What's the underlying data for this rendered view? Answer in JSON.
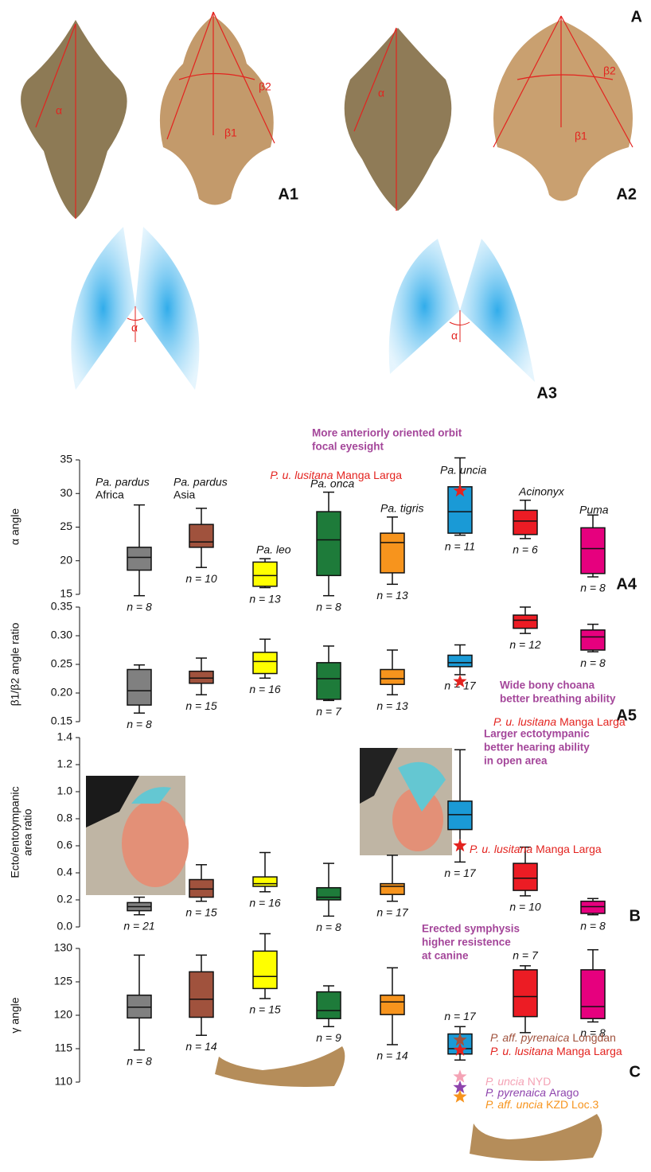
{
  "panel_labels": {
    "a": "A",
    "a1": "A1",
    "a2": "A2",
    "a3": "A3"
  },
  "angle_labels": {
    "alpha": "α",
    "beta1": "β1",
    "beta2": "β2"
  },
  "chart_data": [
    {
      "type": "box",
      "panel": "A4",
      "y_label": "α angle",
      "ylim": [
        15,
        35
      ],
      "yticks": [
        15,
        20,
        25,
        30,
        35
      ],
      "colors": [
        "#808080",
        "#a0523d",
        "#ffff00",
        "#1e7b3a",
        "#f7941d",
        "#1a9ad6",
        "#ec1c24",
        "#e6007e"
      ],
      "group_labels": [
        [
          "Pa. pardus",
          "Africa"
        ],
        [
          "Pa.  pardus",
          "Asia"
        ],
        [
          "Pa. leo"
        ],
        [
          "Pa. onca"
        ],
        [
          "Pa. tigris"
        ],
        [
          "Pa. uncia"
        ],
        [
          "Acinonyx"
        ],
        [
          "Puma"
        ]
      ],
      "boxes": [
        [
          14.8,
          18.6,
          20.5,
          22,
          28.3
        ],
        [
          19,
          22,
          22.8,
          25.4,
          27.8
        ],
        [
          16,
          16.2,
          17.8,
          19.8,
          20.3
        ],
        [
          14.8,
          17.8,
          23.1,
          27.3,
          30.2
        ],
        [
          16.5,
          18.2,
          22.7,
          24.1,
          26.5
        ],
        [
          23.8,
          24.1,
          27.3,
          31,
          35.3
        ],
        [
          23.3,
          23.9,
          25.9,
          27.5,
          29
        ],
        [
          17.6,
          18.1,
          21.8,
          24.9,
          26.8
        ]
      ],
      "n_labels": [
        "n = 8",
        "n = 10",
        "n = 13",
        "n = 8",
        "n = 13",
        "n = 11",
        "n = 6",
        "n = 8"
      ],
      "note": [
        "More anteriorly oriented orbit",
        "focal eyesight"
      ],
      "stars": [
        {
          "species": "P. u. lusitana",
          "site": "Manga  Larga",
          "value": 30.4,
          "color": "#e3231f"
        }
      ]
    },
    {
      "type": "box",
      "panel": "A5",
      "y_label": "β1/β2 angle ratio",
      "ylim": [
        0.15,
        0.35
      ],
      "yticks": [
        0.15,
        {
          "value": 0.2,
          "label": "0.20"
        },
        0.25,
        {
          "value": 0.3,
          "label": "0.30"
        },
        0.35
      ],
      "colors": [
        "#808080",
        "#a0523d",
        "#ffff00",
        "#1e7b3a",
        "#f7941d",
        "#1a9ad6",
        "#ec1c24",
        "#e6007e"
      ],
      "boxes": [
        [
          0.165,
          0.179,
          0.204,
          0.241,
          0.249
        ],
        [
          0.197,
          0.217,
          0.226,
          0.238,
          0.261
        ],
        [
          0.226,
          0.234,
          0.255,
          0.271,
          0.294
        ],
        [
          0.187,
          0.189,
          0.225,
          0.253,
          0.282
        ],
        [
          0.197,
          0.215,
          0.225,
          0.241,
          0.275
        ],
        [
          0.232,
          0.246,
          0.253,
          0.266,
          0.284
        ],
        [
          0.304,
          0.313,
          0.327,
          0.336,
          0.35
        ],
        [
          0.272,
          0.275,
          0.298,
          0.31,
          0.32
        ]
      ],
      "n_labels": [
        "n = 8",
        "n = 15",
        "n = 16",
        "n = 7",
        "n = 13",
        "n = 17",
        "n = 12",
        "n = 8"
      ],
      "note": [
        "Wide bony choana",
        "better breathing ability"
      ],
      "stars": [
        {
          "species": "P. u. lusitana",
          "site": "Manga  Larga",
          "value": 0.22,
          "color": "#e3231f"
        }
      ]
    },
    {
      "type": "box",
      "panel": "B",
      "y_label": [
        "Ecto/entotympanic",
        "area ratio"
      ],
      "ylim": [
        0,
        1.4
      ],
      "yticks": [
        {
          "value": 0,
          "label": "0.0"
        },
        0.2,
        0.4,
        0.6,
        0.8,
        {
          "value": 1,
          "label": "1.0"
        },
        1.2,
        1.4
      ],
      "colors": [
        "#808080",
        "#a0523d",
        "#ffff00",
        "#1e7b3a",
        "#f7941d",
        "#1a9ad6",
        "#ec1c24",
        "#e6007e"
      ],
      "boxes": [
        [
          0.09,
          0.12,
          0.15,
          0.18,
          0.22
        ],
        [
          0.19,
          0.22,
          0.28,
          0.35,
          0.46
        ],
        [
          0.26,
          0.3,
          0.32,
          0.37,
          0.55
        ],
        [
          0.08,
          0.2,
          0.22,
          0.29,
          0.47
        ],
        [
          0.19,
          0.24,
          0.3,
          0.32,
          0.53
        ],
        [
          0.48,
          0.72,
          0.83,
          0.93,
          1.31
        ],
        [
          0.23,
          0.27,
          0.36,
          0.47,
          0.59
        ],
        [
          0.09,
          0.1,
          0.15,
          0.19,
          0.21
        ]
      ],
      "n_labels": [
        "n = 21",
        "n = 15",
        "n = 16",
        "n = 8",
        "n = 17",
        "n = 17",
        "n = 10",
        "n = 8"
      ],
      "note": [
        "Larger ectotympanic",
        "better hearing ability",
        "in open area"
      ],
      "stars": [
        {
          "species": "P. u. lusitana",
          "site": "Manga  Larga",
          "value": 0.6,
          "color": "#e3231f"
        }
      ]
    },
    {
      "type": "box",
      "panel": "C",
      "y_label": "γ angle",
      "ylim": [
        110,
        130
      ],
      "yticks": [
        110,
        115,
        120,
        125,
        130
      ],
      "colors": [
        "#808080",
        "#a0523d",
        "#ffff00",
        "#1e7b3a",
        "#f7941d",
        "#1a9ad6",
        "#ec1c24",
        "#e6007e"
      ],
      "boxes": [
        [
          114.8,
          119.6,
          121.2,
          123,
          129
        ],
        [
          117,
          119.7,
          122.4,
          126.5,
          129
        ],
        [
          122.5,
          124,
          125.8,
          129.6,
          132.2
        ],
        [
          118.3,
          119.5,
          120.7,
          123.5,
          124.4
        ],
        [
          115.6,
          120.1,
          122,
          123,
          127.1
        ],
        [
          113.3,
          114.2,
          115,
          117.2,
          118.3
        ],
        [
          117.4,
          119.8,
          122.8,
          126.8,
          127.4
        ],
        [
          119,
          119.5,
          121.3,
          126.8,
          129.8
        ]
      ],
      "n_labels": [
        "n = 8",
        "n = 14",
        "n = 15",
        "n = 9",
        "n = 14",
        "n = 17",
        "n = 7",
        "n = 8"
      ],
      "note": [
        "Erected symphysis",
        "higher resistence",
        "at canine"
      ],
      "stars": [
        {
          "species": "P. aff. pyrenaica",
          "site": "Longdan",
          "value": 116.3,
          "color": "#a0523d"
        },
        {
          "species": "P. u. lusitana",
          "site": "Manga  Larga",
          "value": 114.8,
          "color": "#e3231f"
        },
        {
          "species": "P. uncia",
          "site": "NYD",
          "value": 110.8,
          "color": "#f4a3b5"
        },
        {
          "species": "P. pyrenaica",
          "site": "Arago",
          "value": 109.2,
          "color": "#8e44ad"
        },
        {
          "species": "P.  aff. uncia",
          "site": "KZD  Loc.3",
          "value": 107.8,
          "color": "#f7941d"
        }
      ]
    }
  ]
}
